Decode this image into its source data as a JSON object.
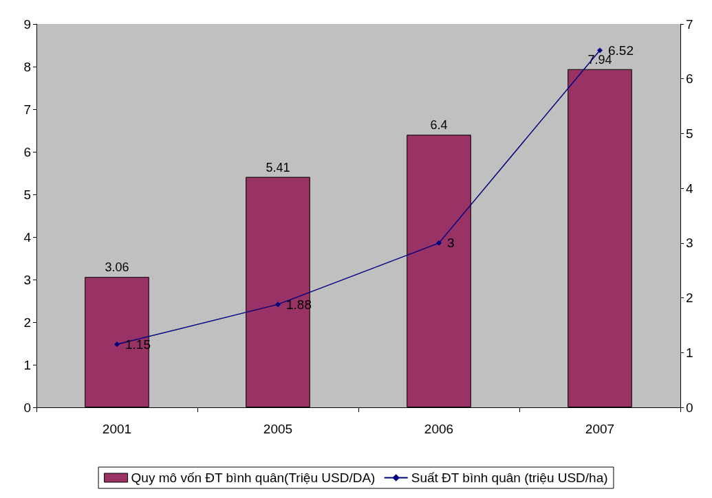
{
  "chart_data": {
    "type": "bar",
    "categories": [
      "2001",
      "2005",
      "2006",
      "2007"
    ],
    "series": [
      {
        "name": "Quy mô vốn ĐT bình quân(Triệu USD/DA)",
        "color": "#993366",
        "values": [
          3.06,
          5.41,
          6.4,
          7.94
        ]
      },
      {
        "name": "Suất ĐT bình quân (triệu USD/ha)",
        "type": "line",
        "axis": "y2",
        "color": "#000080",
        "marker": "diamond",
        "values": [
          1.15,
          1.88,
          3,
          6.52
        ]
      }
    ],
    "ylim": [
      0,
      9
    ],
    "yticks": [
      0,
      1,
      2,
      3,
      4,
      5,
      6,
      7,
      8,
      9
    ],
    "y2lim": [
      0,
      7
    ],
    "y2ticks": [
      0,
      1,
      2,
      3,
      4,
      5,
      6,
      7
    ],
    "data_labels": true,
    "legend": "bottom",
    "grid": false
  }
}
